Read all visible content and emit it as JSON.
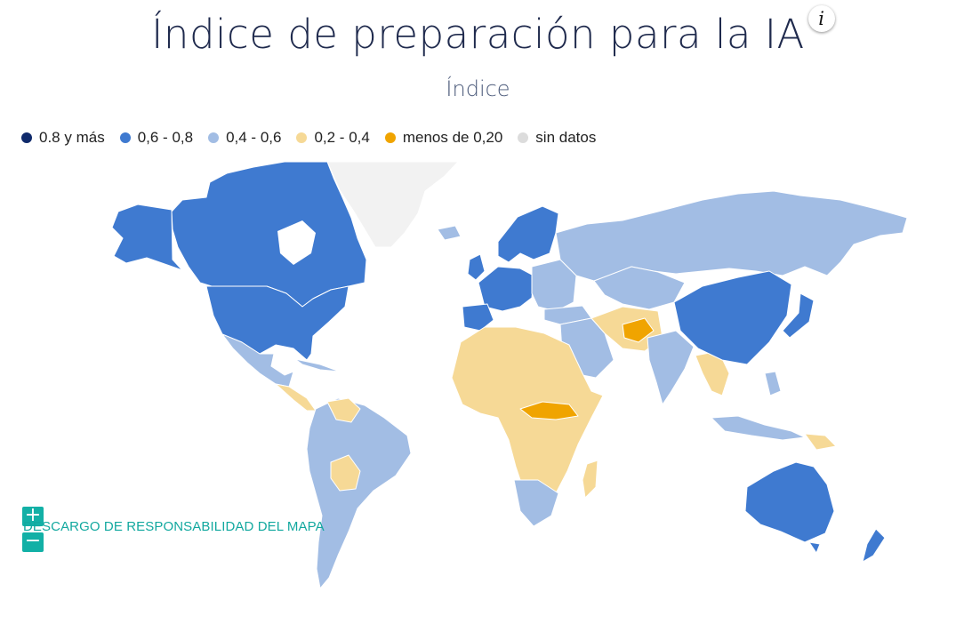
{
  "title": "Índice de preparación para la IA",
  "info_icon": "i",
  "subtitle": "Índice",
  "legend": [
    {
      "label": "0.8 y más",
      "color": "#0f2a6b"
    },
    {
      "label": "0,6 - 0,8",
      "color": "#3f7ad0"
    },
    {
      "label": "0,4 - 0,6",
      "color": "#a2bde4"
    },
    {
      "label": "0,2 - 0,4",
      "color": "#f6d996"
    },
    {
      "label": "menos de 0,20",
      "color": "#f0a400"
    },
    {
      "label": "sin datos",
      "color": "#dcdcdc"
    }
  ],
  "map_regions": [
    {
      "name": "Canadá",
      "band": "0,6 - 0,8"
    },
    {
      "name": "Estados Unidos",
      "band": "0,6 - 0,8"
    },
    {
      "name": "Groenlandia",
      "band": "sin datos"
    },
    {
      "name": "México",
      "band": "0,4 - 0,6"
    },
    {
      "name": "América del Sur",
      "band": "0,4 - 0,6"
    },
    {
      "name": "Bolivia",
      "band": "0,2 - 0,4"
    },
    {
      "name": "Venezuela",
      "band": "0,2 - 0,4"
    },
    {
      "name": "Europa Occidental",
      "band": "0,6 - 0,8"
    },
    {
      "name": "Europa Oriental",
      "band": "0,4 - 0,6"
    },
    {
      "name": "Rusia",
      "band": "0,4 - 0,6"
    },
    {
      "name": "China",
      "band": "0,6 - 0,8"
    },
    {
      "name": "Japón",
      "band": "0,6 - 0,8"
    },
    {
      "name": "India",
      "band": "0,4 - 0,6"
    },
    {
      "name": "Afganistán",
      "band": "menos de 0,20"
    },
    {
      "name": "África",
      "band": "0,2 - 0,4"
    },
    {
      "name": "África Central",
      "band": "menos de 0,20"
    },
    {
      "name": "Sudáfrica",
      "band": "0,4 - 0,6"
    },
    {
      "name": "Australia",
      "band": "0,6 - 0,8"
    },
    {
      "name": "Nueva Zelanda",
      "band": "0,6 - 0,8"
    }
  ],
  "zoom": {
    "in": "+",
    "out": "−"
  },
  "disclaimer": "DESCARGO DE RESPONSABILIDAD DEL MAPA"
}
